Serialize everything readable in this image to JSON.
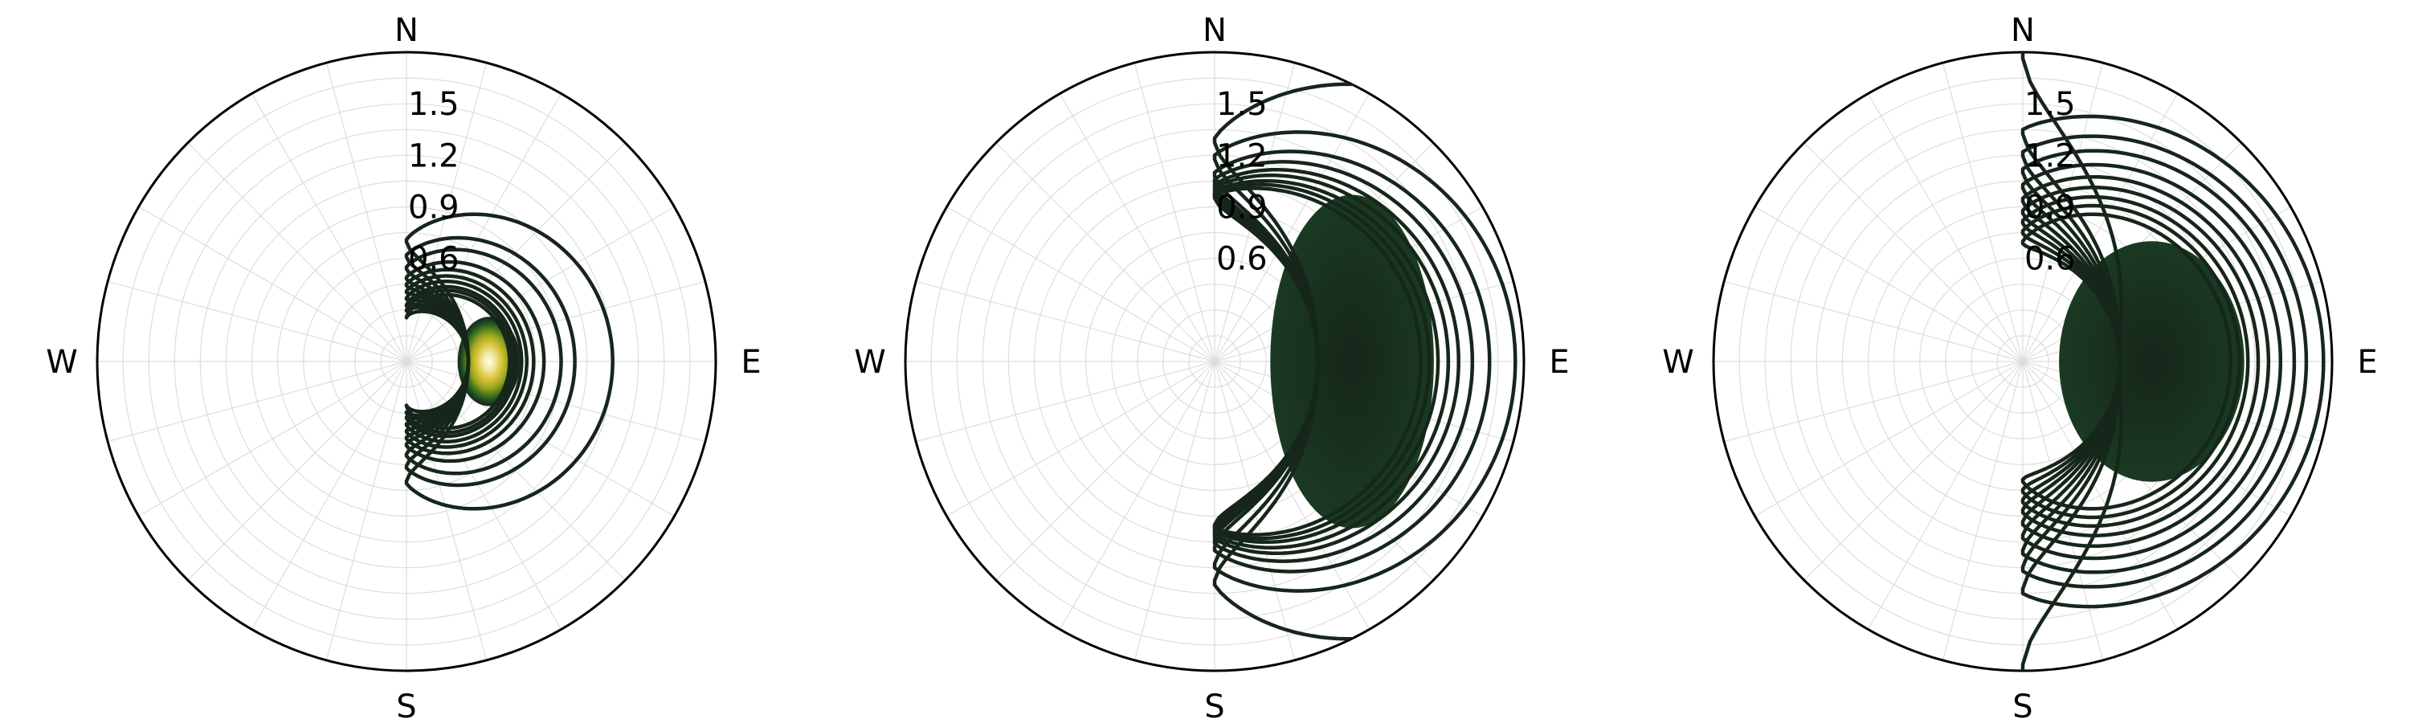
{
  "chart_data": [
    {
      "type": "contour",
      "projection": "polar",
      "theta_labels": [
        "N",
        "E",
        "S",
        "W"
      ],
      "r_tick_labels": [
        "0.6",
        "0.9",
        "1.2",
        "1.5"
      ],
      "r_ticks": [
        0.6,
        0.9,
        1.2,
        1.5
      ],
      "rlim": [
        0,
        1.8
      ],
      "grid": true,
      "line_color": "#16261a",
      "fill_colors": [
        "#ffffe6",
        "#f0e6a0",
        "#d9c43a",
        "#9aa61c",
        "#4a7a1e",
        "#1e4a22",
        "#16261a"
      ],
      "peak": {
        "theta_deg": 90,
        "r": 0.48
      },
      "contours": [
        {
          "level": 1,
          "east_r": 1.2,
          "north_r": 0.71
        },
        {
          "level": 2,
          "east_r": 0.98,
          "north_r": 0.62
        },
        {
          "level": 3,
          "east_r": 0.9,
          "north_r": 0.55
        },
        {
          "level": 4,
          "east_r": 0.8,
          "north_r": 0.49
        },
        {
          "level": 5,
          "east_r": 0.74,
          "north_r": 0.45
        },
        {
          "level": 6,
          "east_r": 0.7,
          "north_r": 0.41
        },
        {
          "level": 7,
          "east_r": 0.67,
          "north_r": 0.37
        },
        {
          "level": 8,
          "east_r": 0.64,
          "north_r": 0.33
        },
        {
          "level": 9,
          "east_r": 0.62,
          "north_r": 0.3
        },
        {
          "level": 10,
          "east_r": 0.6,
          "north_r": 0.26
        }
      ]
    },
    {
      "type": "contour",
      "projection": "polar",
      "theta_labels": [
        "N",
        "E",
        "S",
        "W"
      ],
      "r_tick_labels": [
        "0.6",
        "0.9",
        "1.2",
        "1.5"
      ],
      "r_ticks": [
        0.6,
        0.9,
        1.2,
        1.5
      ],
      "rlim": [
        0,
        1.8
      ],
      "grid": true,
      "line_color": "#16261a",
      "fill_colors": [
        "#16261a",
        "#1a3a22"
      ],
      "peak": {
        "theta_deg": 90,
        "r": 0.8
      },
      "contours": [
        {
          "level": 1,
          "east_r": 2.3,
          "north_r": 1.3
        },
        {
          "level": 2,
          "east_r": 1.75,
          "north_r": 1.2
        },
        {
          "level": 3,
          "east_r": 1.6,
          "north_r": 1.1
        },
        {
          "level": 4,
          "east_r": 1.5,
          "north_r": 1.06
        },
        {
          "level": 5,
          "east_r": 1.42,
          "north_r": 1.03
        },
        {
          "level": 6,
          "east_r": 1.36,
          "north_r": 1.01
        },
        {
          "level": 7,
          "east_r": 1.3,
          "north_r": 0.99
        },
        {
          "level": 8,
          "east_r": 1.25,
          "north_r": 0.98
        },
        {
          "level": 9,
          "east_r": 1.2,
          "north_r": 0.97
        }
      ]
    },
    {
      "type": "contour",
      "projection": "polar",
      "theta_labels": [
        "N",
        "E",
        "S",
        "W"
      ],
      "r_tick_labels": [
        "0.6",
        "0.9",
        "1.2",
        "1.5"
      ],
      "r_ticks": [
        0.6,
        0.9,
        1.2,
        1.5
      ],
      "rlim": [
        0,
        1.8
      ],
      "grid": true,
      "line_color": "#16261a",
      "fill_colors": [
        "#16261a",
        "#1a3a22"
      ],
      "peak": {
        "theta_deg": 90,
        "r": 0.75
      },
      "contours": [
        {
          "level": 1,
          "east_r": 2.3,
          "north_r": 1.8
        },
        {
          "level": 2,
          "east_r": 1.75,
          "north_r": 1.35
        },
        {
          "level": 3,
          "east_r": 1.65,
          "north_r": 1.22
        },
        {
          "level": 4,
          "east_r": 1.58,
          "north_r": 1.12
        },
        {
          "level": 5,
          "east_r": 1.5,
          "north_r": 1.03
        },
        {
          "level": 6,
          "east_r": 1.43,
          "north_r": 0.95
        },
        {
          "level": 7,
          "east_r": 1.37,
          "north_r": 0.88
        },
        {
          "level": 8,
          "east_r": 1.31,
          "north_r": 0.82
        },
        {
          "level": 9,
          "east_r": 1.26,
          "north_r": 0.76
        },
        {
          "level": 10,
          "east_r": 1.21,
          "north_r": 0.7
        }
      ]
    }
  ]
}
